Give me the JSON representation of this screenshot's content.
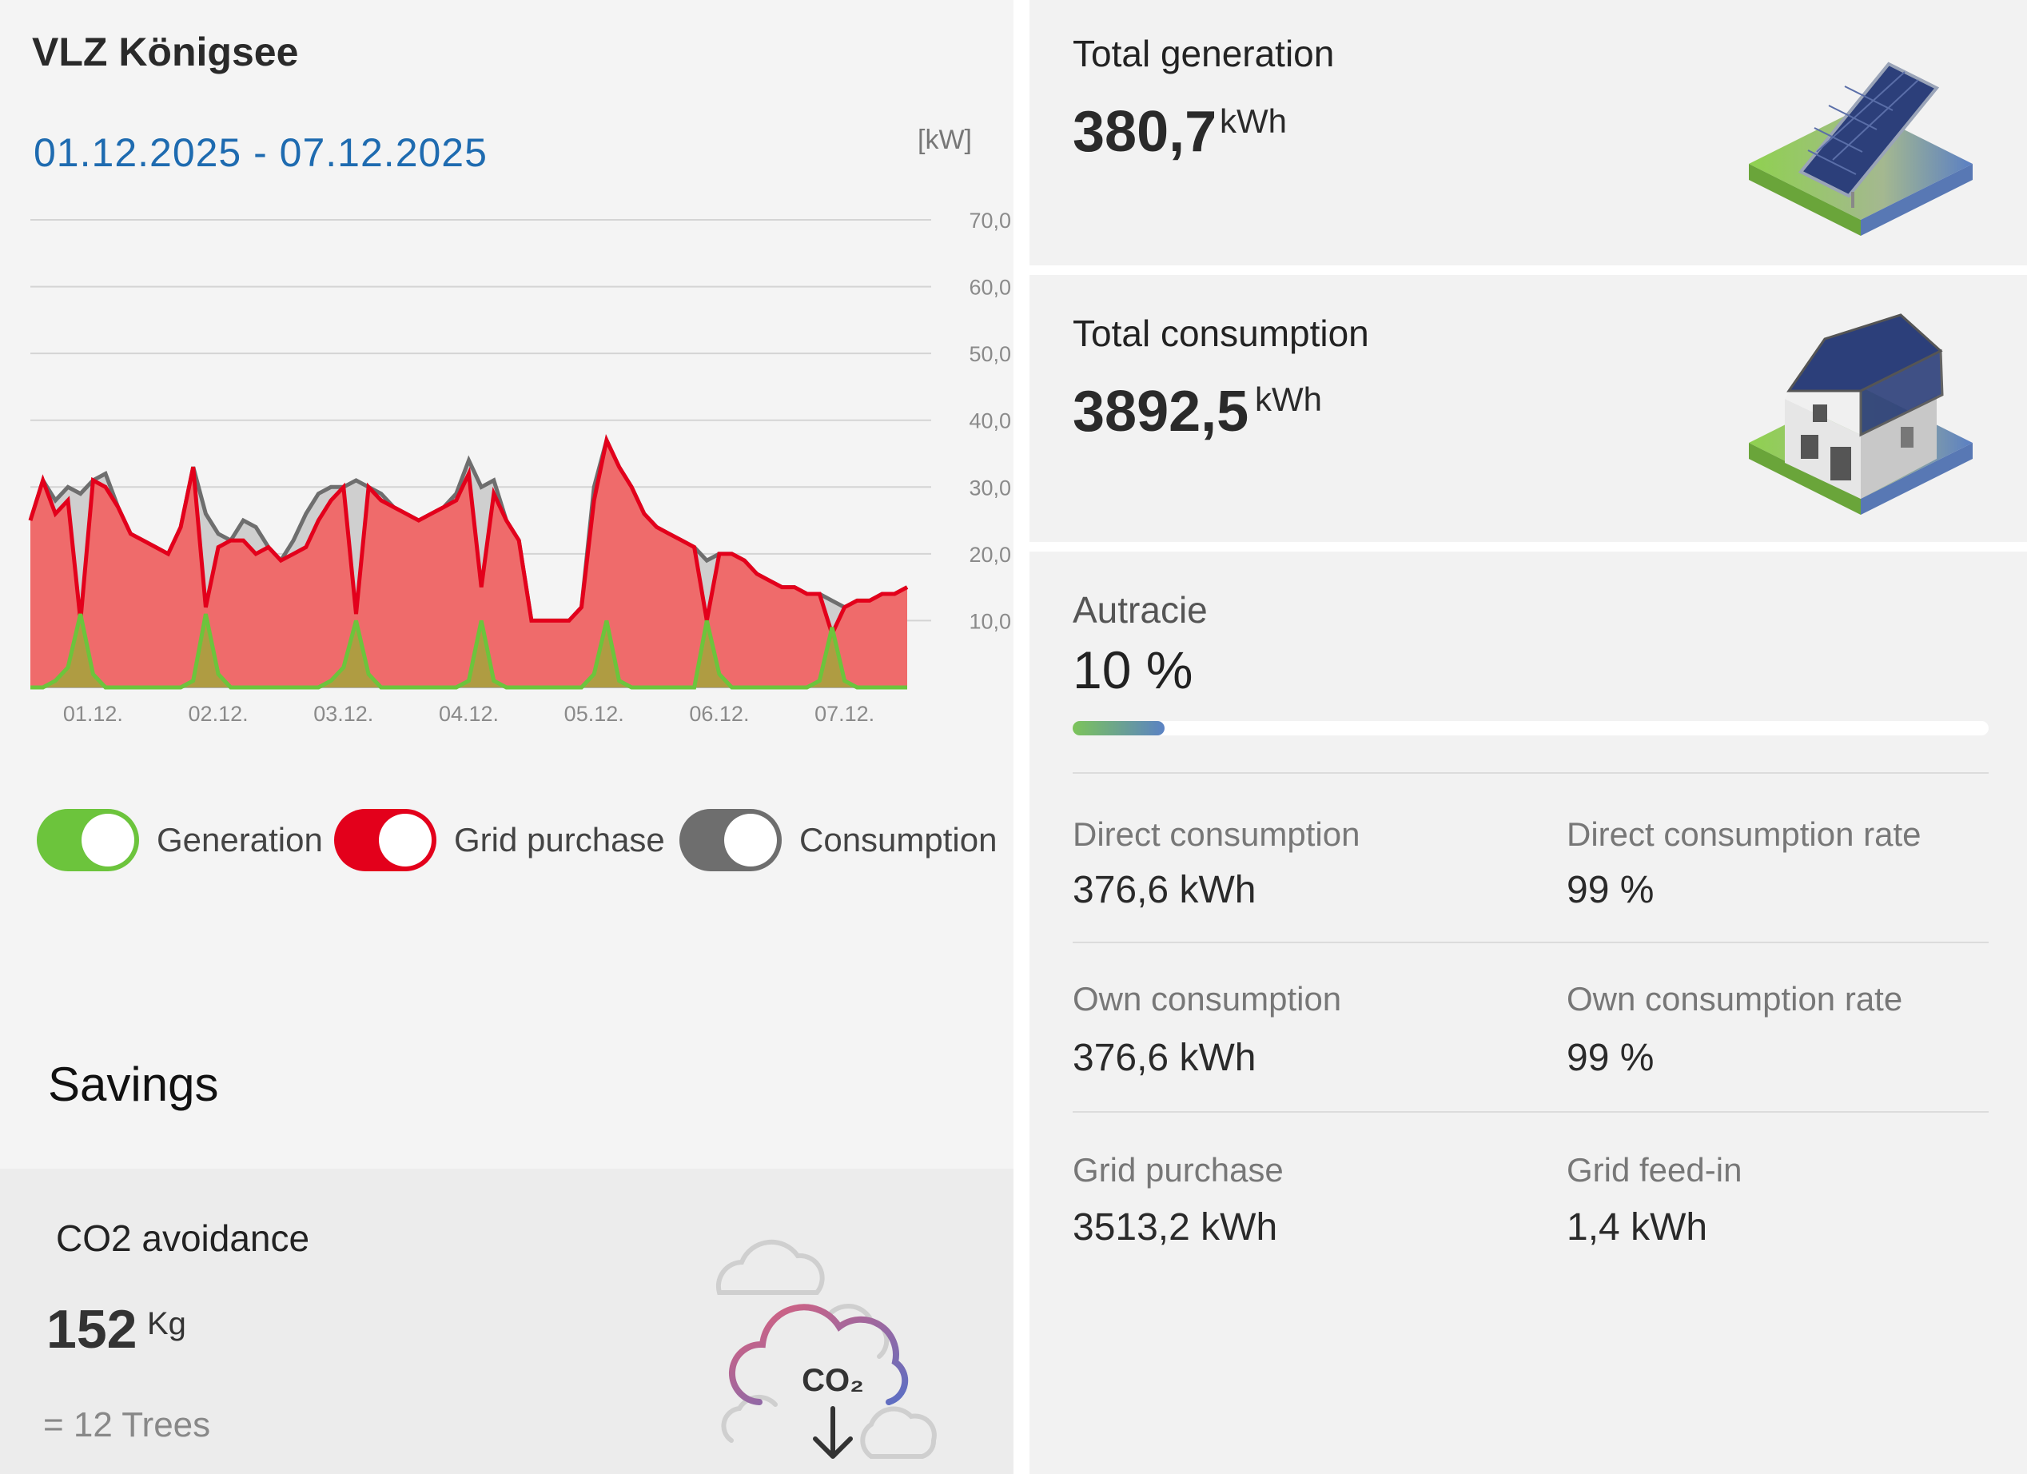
{
  "site": {
    "title": "VLZ Königsee",
    "date_range": "01.12.2025 - 07.12.2025",
    "unit": "[kW]"
  },
  "colors": {
    "generation": "#6cc43c",
    "grid_purchase": "#e3001b",
    "consumption": "#6e6e6e",
    "date_accent": "#1e6bb0"
  },
  "chart_data": {
    "type": "area",
    "xlabel": "",
    "ylabel": "[kW]",
    "ylim": [
      0,
      70
    ],
    "y_ticks": [
      "70,0",
      "60,0",
      "50,0",
      "40,0",
      "30,0",
      "20,0",
      "10,0"
    ],
    "categories": [
      "01.12.",
      "02.12.",
      "03.12.",
      "04.12.",
      "05.12.",
      "06.12.",
      "07.12."
    ],
    "x": [
      0,
      0.1,
      0.2,
      0.3,
      0.4,
      0.5,
      0.6,
      0.7,
      0.8,
      0.9,
      1,
      1.1,
      1.2,
      1.3,
      1.4,
      1.5,
      1.6,
      1.7,
      1.8,
      1.9,
      2,
      2.1,
      2.2,
      2.3,
      2.4,
      2.5,
      2.6,
      2.7,
      2.8,
      2.9,
      3,
      3.1,
      3.2,
      3.3,
      3.4,
      3.5,
      3.6,
      3.7,
      3.8,
      3.9,
      4,
      4.1,
      4.2,
      4.3,
      4.4,
      4.5,
      4.6,
      4.7,
      4.8,
      4.9,
      5,
      5.1,
      5.2,
      5.3,
      5.4,
      5.5,
      5.6,
      5.7,
      5.8,
      5.9,
      6,
      6.1,
      6.2,
      6.3,
      6.4,
      6.5,
      6.6,
      6.7,
      6.8,
      6.9,
      7
    ],
    "series": [
      {
        "name": "Consumption",
        "values": [
          25,
          31,
          28,
          30,
          29,
          31,
          32,
          27,
          23,
          22,
          21,
          20,
          24,
          33,
          26,
          23,
          22,
          25,
          24,
          21,
          19,
          22,
          26,
          29,
          30,
          30,
          31,
          30,
          29,
          27,
          26,
          25,
          26,
          27,
          29,
          34,
          30,
          31,
          25,
          22,
          10,
          10,
          10,
          10,
          12,
          30,
          37,
          33,
          30,
          26,
          24,
          23,
          22,
          21,
          19,
          20,
          20,
          19,
          17,
          16,
          15,
          15,
          14,
          14,
          13,
          12,
          13,
          13,
          14,
          14,
          15
        ]
      },
      {
        "name": "Grid purchase",
        "values": [
          25,
          31,
          26,
          28,
          10,
          31,
          30,
          27,
          23,
          22,
          21,
          20,
          24,
          33,
          12,
          21,
          22,
          22,
          20,
          21,
          19,
          20,
          21,
          25,
          28,
          30,
          11,
          30,
          28,
          27,
          26,
          25,
          26,
          27,
          28,
          32,
          15,
          29,
          25,
          22,
          10,
          10,
          10,
          10,
          12,
          28,
          37,
          33,
          30,
          26,
          24,
          23,
          22,
          21,
          10,
          20,
          20,
          19,
          17,
          16,
          15,
          15,
          14,
          14,
          8,
          12,
          13,
          13,
          14,
          14,
          15
        ]
      },
      {
        "name": "Generation",
        "values": [
          0,
          0,
          1,
          3,
          11,
          2,
          0,
          0,
          0,
          0,
          0,
          0,
          0,
          1,
          11,
          2,
          0,
          0,
          0,
          0,
          0,
          0,
          0,
          0,
          1,
          3,
          10,
          2,
          0,
          0,
          0,
          0,
          0,
          0,
          0,
          1,
          10,
          1,
          0,
          0,
          0,
          0,
          0,
          0,
          0,
          2,
          10,
          1,
          0,
          0,
          0,
          0,
          0,
          0,
          10,
          2,
          0,
          0,
          0,
          0,
          0,
          0,
          0,
          1,
          9,
          1,
          0,
          0,
          0,
          0,
          0
        ]
      }
    ]
  },
  "toggles": [
    {
      "label": "Generation",
      "color": "#6cc43c"
    },
    {
      "label": "Grid purchase",
      "color": "#e3001b"
    },
    {
      "label": "Consumption",
      "color": "#6e6e6e"
    }
  ],
  "savings": {
    "title": "Savings",
    "co2_title": "CO2 avoidance",
    "co2_value": "152",
    "co2_unit": "Kg",
    "trees": "= 12 Trees",
    "icon_label": "CO₂"
  },
  "totals": {
    "generation": {
      "title": "Total generation",
      "value": "380,7",
      "unit": "kWh"
    },
    "consumption": {
      "title": "Total consumption",
      "value": "3892,5",
      "unit": "kWh"
    }
  },
  "autarky": {
    "title": "Autracie",
    "value": "10 %",
    "percent": 10
  },
  "stats": [
    {
      "label": "Direct consumption",
      "value": "376,6 kWh"
    },
    {
      "label": "Direct consumption rate",
      "value": "99 %"
    },
    {
      "label": "Own consumption",
      "value": "376,6 kWh"
    },
    {
      "label": "Own consumption rate",
      "value": "99 %"
    },
    {
      "label": "Grid purchase",
      "value": "3513,2 kWh"
    },
    {
      "label": "Grid feed-in",
      "value": "1,4 kWh"
    }
  ]
}
